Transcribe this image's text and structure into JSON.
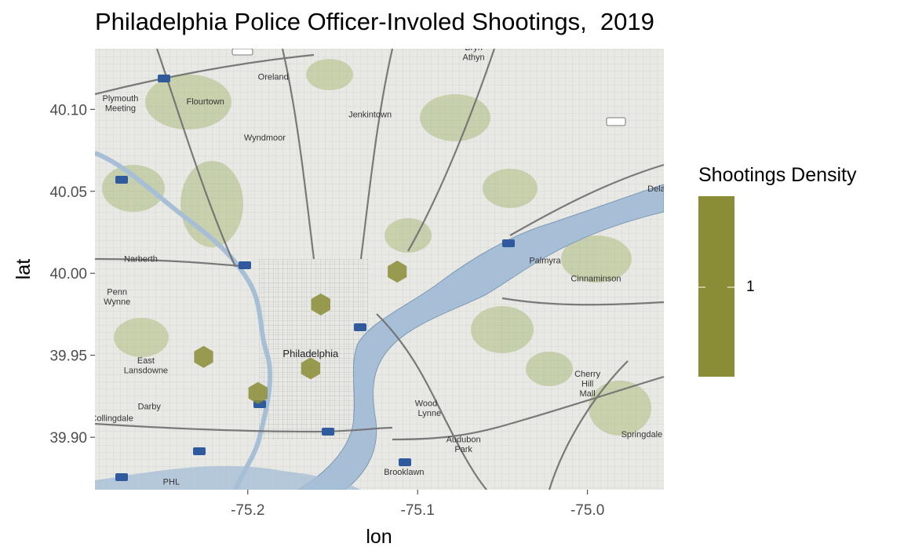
{
  "title": "Philadelphia Police Officer-Involed Shootings,  2019",
  "chart_data": {
    "type": "scatter",
    "geom": "hexbin density over basemap",
    "title": "Philadelphia Police Officer-Involed Shootings,  2019",
    "xlabel": "lon",
    "ylabel": "lat",
    "xlim": [
      -75.29,
      -74.955
    ],
    "ylim": [
      39.868,
      40.137
    ],
    "x_ticks": [
      -75.2,
      -75.1,
      -75.0
    ],
    "x_tick_labels": [
      "-75.2",
      "-75.1",
      "-75.0"
    ],
    "y_ticks": [
      39.9,
      39.95,
      40.0,
      40.05,
      40.1
    ],
    "y_tick_labels": [
      "39.90",
      "39.95",
      "40.00",
      "40.05",
      "40.10"
    ],
    "points": [
      {
        "lon": -75.112,
        "lat": 40.001,
        "density": 1
      },
      {
        "lon": -75.157,
        "lat": 39.981,
        "density": 1
      },
      {
        "lon": -75.226,
        "lat": 39.949,
        "density": 1
      },
      {
        "lon": -75.163,
        "lat": 39.942,
        "density": 1
      },
      {
        "lon": -75.194,
        "lat": 39.927,
        "density": 1
      }
    ],
    "fill_color": "#8a8c36",
    "legend": {
      "title": "Shootings Density",
      "labels": [
        "1"
      ],
      "placement": "right"
    }
  },
  "basemap": {
    "places": [
      {
        "name": "Oreland",
        "lon": -75.185,
        "lat": 40.118
      },
      {
        "name": "Flourtown",
        "lon": -75.225,
        "lat": 40.103
      },
      {
        "name": "Plymouth",
        "lon": -75.275,
        "lat": 40.105
      },
      {
        "name": "Meeting",
        "lon": -75.275,
        "lat": 40.099
      },
      {
        "name": "Jenkintown",
        "lon": -75.128,
        "lat": 40.095
      },
      {
        "name": "Wyndmoor",
        "lon": -75.19,
        "lat": 40.081
      },
      {
        "name": "Bryn",
        "lon": -75.067,
        "lat": 40.136
      },
      {
        "name": "Athyn",
        "lon": -75.067,
        "lat": 40.13
      },
      {
        "name": "Narberth",
        "lon": -75.263,
        "lat": 40.007
      },
      {
        "name": "Penn",
        "lon": -75.277,
        "lat": 39.987
      },
      {
        "name": "Wynne",
        "lon": -75.277,
        "lat": 39.981
      },
      {
        "name": "Philadelphia",
        "lon": -75.163,
        "lat": 39.949
      },
      {
        "name": "East",
        "lon": -75.26,
        "lat": 39.945
      },
      {
        "name": "Lansdowne",
        "lon": -75.26,
        "lat": 39.939
      },
      {
        "name": "Darby",
        "lon": -75.258,
        "lat": 39.917
      },
      {
        "name": "Collingdale",
        "lon": -75.28,
        "lat": 39.91
      },
      {
        "name": "Palmyra",
        "lon": -75.025,
        "lat": 40.006
      },
      {
        "name": "Cinnaminson",
        "lon": -74.995,
        "lat": 39.995
      },
      {
        "name": "Cherry",
        "lon": -75.0,
        "lat": 39.937
      },
      {
        "name": "Hill",
        "lon": -75.0,
        "lat": 39.931
      },
      {
        "name": "Mall",
        "lon": -75.0,
        "lat": 39.925
      },
      {
        "name": "Wood",
        "lon": -75.095,
        "lat": 39.919
      },
      {
        "name": "Lynne",
        "lon": -75.093,
        "lat": 39.913
      },
      {
        "name": "Audubon",
        "lon": -75.073,
        "lat": 39.897
      },
      {
        "name": "Park",
        "lon": -75.073,
        "lat": 39.891
      },
      {
        "name": "Brooklawn",
        "lon": -75.108,
        "lat": 39.877
      },
      {
        "name": "Springdale",
        "lon": -74.968,
        "lat": 39.9
      },
      {
        "name": "Delan",
        "lon": -74.958,
        "lat": 40.05
      },
      {
        "name": "PHL",
        "lon": -75.245,
        "lat": 39.871
      }
    ]
  }
}
